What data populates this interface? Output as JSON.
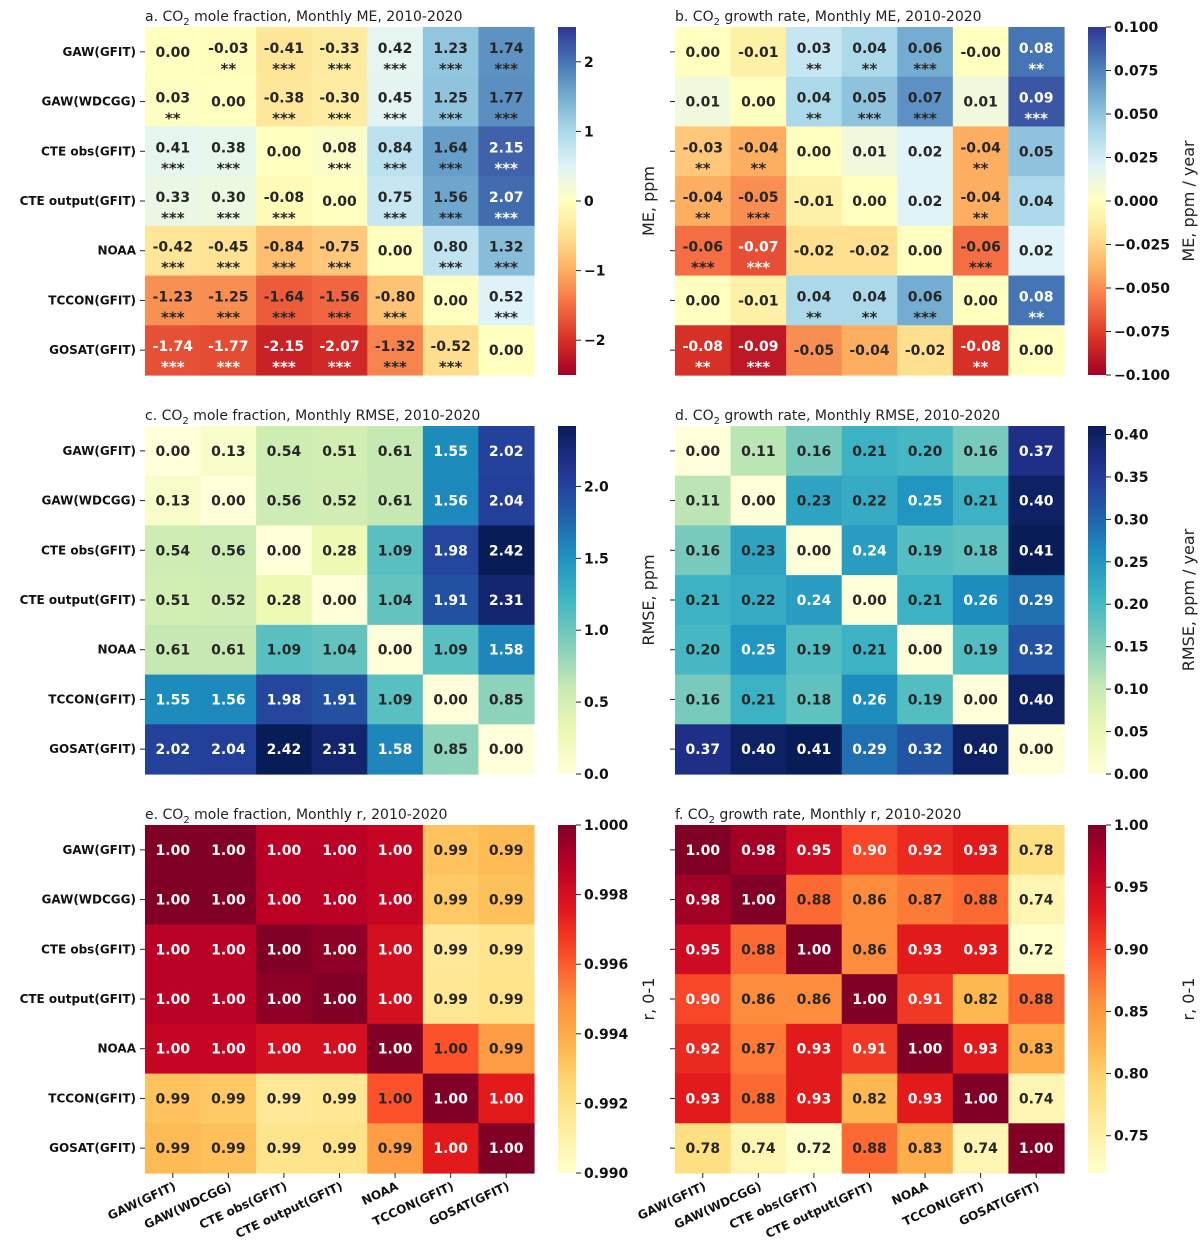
{
  "figure": {
    "row_labels": [
      "GAW(GFIT)",
      "GAW(WDCGG)",
      "CTE obs(GFIT)",
      "CTE output(GFIT)",
      "NOAA",
      "TCCON(GFIT)",
      "GOSAT(GFIT)"
    ]
  },
  "chart_data": [
    {
      "id": "a",
      "type": "heatmap",
      "title": "a. CO₂ mole fraction, Monthly ME, 2010-2020",
      "rows": [
        "GAW(GFIT)",
        "GAW(WDCGG)",
        "CTE obs(GFIT)",
        "CTE output(GFIT)",
        "NOAA",
        "TCCON(GFIT)",
        "GOSAT(GFIT)"
      ],
      "cols": [
        "GAW(GFIT)",
        "GAW(WDCGG)",
        "CTE obs(GFIT)",
        "CTE output(GFIT)",
        "NOAA",
        "TCCON(GFIT)",
        "GOSAT(GFIT)"
      ],
      "labels": [
        [
          "0.00",
          "-0.03",
          "-0.41",
          "-0.33",
          "0.42",
          "1.23",
          "1.74"
        ],
        [
          "0.03",
          "0.00",
          "-0.38",
          "-0.30",
          "0.45",
          "1.25",
          "1.77"
        ],
        [
          "0.41",
          "0.38",
          "0.00",
          "0.08",
          "0.84",
          "1.64",
          "2.15"
        ],
        [
          "0.33",
          "0.30",
          "-0.08",
          "0.00",
          "0.75",
          "1.56",
          "2.07"
        ],
        [
          "-0.42",
          "-0.45",
          "-0.84",
          "-0.75",
          "0.00",
          "0.80",
          "1.32"
        ],
        [
          "-1.23",
          "-1.25",
          "-1.64",
          "-1.56",
          "-0.80",
          "0.00",
          "0.52"
        ],
        [
          "-1.74",
          "-1.77",
          "-2.15",
          "-2.07",
          "-1.32",
          "-0.52",
          "0.00"
        ]
      ],
      "significance": [
        [
          "",
          "**",
          "***",
          "***",
          "***",
          "***",
          "***"
        ],
        [
          "**",
          "",
          "***",
          "***",
          "***",
          "***",
          "***"
        ],
        [
          "***",
          "***",
          "",
          "***",
          "***",
          "***",
          "***"
        ],
        [
          "***",
          "***",
          "***",
          "",
          "***",
          "***",
          "***"
        ],
        [
          "***",
          "***",
          "***",
          "***",
          "",
          "***",
          "***"
        ],
        [
          "***",
          "***",
          "***",
          "***",
          "***",
          "",
          "***"
        ],
        [
          "***",
          "***",
          "***",
          "***",
          "***",
          "***",
          ""
        ]
      ],
      "colormap": "RdYlBu",
      "vmin": -2.5,
      "vmax": 2.5,
      "colorbar_label": "ME, ppm",
      "colorbar_ticks": [
        -2,
        -1,
        0,
        1,
        2
      ],
      "colorbar_tick_labels": [
        "−2",
        "−1",
        "0",
        "1",
        "2"
      ]
    },
    {
      "id": "b",
      "type": "heatmap",
      "title": "b. CO₂ growth rate, Monthly ME, 2010-2020",
      "rows": [
        "GAW(GFIT)",
        "GAW(WDCGG)",
        "CTE obs(GFIT)",
        "CTE output(GFIT)",
        "NOAA",
        "TCCON(GFIT)",
        "GOSAT(GFIT)"
      ],
      "cols": [
        "GAW(GFIT)",
        "GAW(WDCGG)",
        "CTE obs(GFIT)",
        "CTE output(GFIT)",
        "NOAA",
        "TCCON(GFIT)",
        "GOSAT(GFIT)"
      ],
      "labels": [
        [
          "0.00",
          "-0.01",
          "0.03",
          "0.04",
          "0.06",
          "-0.00",
          "0.08"
        ],
        [
          "0.01",
          "0.00",
          "0.04",
          "0.05",
          "0.07",
          "0.01",
          "0.09"
        ],
        [
          "-0.03",
          "-0.04",
          "0.00",
          "0.01",
          "0.02",
          "-0.04",
          "0.05"
        ],
        [
          "-0.04",
          "-0.05",
          "-0.01",
          "0.00",
          "0.02",
          "-0.04",
          "0.04"
        ],
        [
          "-0.06",
          "-0.07",
          "-0.02",
          "-0.02",
          "0.00",
          "-0.06",
          "0.02"
        ],
        [
          "0.00",
          "-0.01",
          "0.04",
          "0.04",
          "0.06",
          "0.00",
          "0.08"
        ],
        [
          "-0.08",
          "-0.09",
          "-0.05",
          "-0.04",
          "-0.02",
          "-0.08",
          "0.00"
        ]
      ],
      "significance": [
        [
          "",
          "",
          "**",
          "**",
          "***",
          "",
          "**"
        ],
        [
          "",
          "",
          "**",
          "***",
          "***",
          "",
          "***"
        ],
        [
          "**",
          "**",
          "",
          "",
          "",
          "**",
          ""
        ],
        [
          "**",
          "***",
          "",
          "",
          "",
          "**",
          ""
        ],
        [
          "***",
          "***",
          "",
          "",
          "",
          "***",
          ""
        ],
        [
          "",
          "",
          "**",
          "**",
          "***",
          "",
          "**"
        ],
        [
          "**",
          "***",
          "",
          "",
          "",
          "**",
          ""
        ]
      ],
      "colormap": "RdYlBu",
      "vmin": -0.1,
      "vmax": 0.1,
      "colorbar_label": "ME, ppm / year",
      "colorbar_ticks": [
        -0.1,
        -0.075,
        -0.05,
        -0.025,
        0,
        0.025,
        0.05,
        0.075,
        0.1
      ],
      "colorbar_tick_labels": [
        "−0.100",
        "−0.075",
        "−0.050",
        "−0.025",
        "0.000",
        "0.025",
        "0.050",
        "0.075",
        "0.100"
      ]
    },
    {
      "id": "c",
      "type": "heatmap",
      "title": "c. CO₂ mole fraction, Monthly RMSE, 2010-2020",
      "rows": [
        "GAW(GFIT)",
        "GAW(WDCGG)",
        "CTE obs(GFIT)",
        "CTE output(GFIT)",
        "NOAA",
        "TCCON(GFIT)",
        "GOSAT(GFIT)"
      ],
      "cols": [
        "GAW(GFIT)",
        "GAW(WDCGG)",
        "CTE obs(GFIT)",
        "CTE output(GFIT)",
        "NOAA",
        "TCCON(GFIT)",
        "GOSAT(GFIT)"
      ],
      "labels": [
        [
          "0.00",
          "0.13",
          "0.54",
          "0.51",
          "0.61",
          "1.55",
          "2.02"
        ],
        [
          "0.13",
          "0.00",
          "0.56",
          "0.52",
          "0.61",
          "1.56",
          "2.04"
        ],
        [
          "0.54",
          "0.56",
          "0.00",
          "0.28",
          "1.09",
          "1.98",
          "2.42"
        ],
        [
          "0.51",
          "0.52",
          "0.28",
          "0.00",
          "1.04",
          "1.91",
          "2.31"
        ],
        [
          "0.61",
          "0.61",
          "1.09",
          "1.04",
          "0.00",
          "1.09",
          "1.58"
        ],
        [
          "1.55",
          "1.56",
          "1.98",
          "1.91",
          "1.09",
          "0.00",
          "0.85"
        ],
        [
          "2.02",
          "2.04",
          "2.42",
          "2.31",
          "1.58",
          "0.85",
          "0.00"
        ]
      ],
      "colormap": "YlGnBu",
      "vmin": 0,
      "vmax": 2.42,
      "colorbar_label": "RMSE, ppm",
      "colorbar_ticks": [
        0,
        0.5,
        1,
        1.5,
        2
      ],
      "colorbar_tick_labels": [
        "0.0",
        "0.5",
        "1.0",
        "1.5",
        "2.0"
      ]
    },
    {
      "id": "d",
      "type": "heatmap",
      "title": "d. CO₂ growth rate, Monthly RMSE, 2010-2020",
      "rows": [
        "GAW(GFIT)",
        "GAW(WDCGG)",
        "CTE obs(GFIT)",
        "CTE output(GFIT)",
        "NOAA",
        "TCCON(GFIT)",
        "GOSAT(GFIT)"
      ],
      "cols": [
        "GAW(GFIT)",
        "GAW(WDCGG)",
        "CTE obs(GFIT)",
        "CTE output(GFIT)",
        "NOAA",
        "TCCON(GFIT)",
        "GOSAT(GFIT)"
      ],
      "labels": [
        [
          "0.00",
          "0.11",
          "0.16",
          "0.21",
          "0.20",
          "0.16",
          "0.37"
        ],
        [
          "0.11",
          "0.00",
          "0.23",
          "0.22",
          "0.25",
          "0.21",
          "0.40"
        ],
        [
          "0.16",
          "0.23",
          "0.00",
          "0.24",
          "0.19",
          "0.18",
          "0.41"
        ],
        [
          "0.21",
          "0.22",
          "0.24",
          "0.00",
          "0.21",
          "0.26",
          "0.29"
        ],
        [
          "0.20",
          "0.25",
          "0.19",
          "0.21",
          "0.00",
          "0.19",
          "0.32"
        ],
        [
          "0.16",
          "0.21",
          "0.18",
          "0.26",
          "0.19",
          "0.00",
          "0.40"
        ],
        [
          "0.37",
          "0.40",
          "0.41",
          "0.29",
          "0.32",
          "0.40",
          "0.00"
        ]
      ],
      "colormap": "YlGnBu",
      "vmin": 0,
      "vmax": 0.41,
      "colorbar_label": "RMSE, ppm / year",
      "colorbar_ticks": [
        0,
        0.05,
        0.1,
        0.15,
        0.2,
        0.25,
        0.3,
        0.35,
        0.4
      ],
      "colorbar_tick_labels": [
        "0.00",
        "0.05",
        "0.10",
        "0.15",
        "0.20",
        "0.25",
        "0.30",
        "0.35",
        "0.40"
      ]
    },
    {
      "id": "e",
      "type": "heatmap",
      "title": "e. CO₂ mole fraction, Monthly r, 2010-2020",
      "rows": [
        "GAW(GFIT)",
        "GAW(WDCGG)",
        "CTE obs(GFIT)",
        "CTE output(GFIT)",
        "NOAA",
        "TCCON(GFIT)",
        "GOSAT(GFIT)"
      ],
      "cols": [
        "GAW(GFIT)",
        "GAW(WDCGG)",
        "CTE obs(GFIT)",
        "CTE output(GFIT)",
        "NOAA",
        "TCCON(GFIT)",
        "GOSAT(GFIT)"
      ],
      "labels": [
        [
          "1.00",
          "1.00",
          "1.00",
          "1.00",
          "1.00",
          "0.99",
          "0.99"
        ],
        [
          "1.00",
          "1.00",
          "1.00",
          "1.00",
          "1.00",
          "0.99",
          "0.99"
        ],
        [
          "1.00",
          "1.00",
          "1.00",
          "1.00",
          "1.00",
          "0.99",
          "0.99"
        ],
        [
          "1.00",
          "1.00",
          "1.00",
          "1.00",
          "1.00",
          "0.99",
          "0.99"
        ],
        [
          "1.00",
          "1.00",
          "1.00",
          "1.00",
          "1.00",
          "1.00",
          "0.99"
        ],
        [
          "0.99",
          "0.99",
          "0.99",
          "0.99",
          "1.00",
          "1.00",
          "1.00"
        ],
        [
          "0.99",
          "0.99",
          "0.99",
          "0.99",
          "0.99",
          "1.00",
          "1.00"
        ]
      ],
      "values": [
        [
          1.0,
          1.0,
          0.9988,
          0.9988,
          0.9985,
          0.9932,
          0.9935
        ],
        [
          1.0,
          1.0,
          0.9988,
          0.9988,
          0.9985,
          0.993,
          0.9933
        ],
        [
          0.9988,
          0.9988,
          1.0,
          0.9997,
          0.998,
          0.9915,
          0.9918
        ],
        [
          0.9988,
          0.9988,
          0.9997,
          1.0,
          0.998,
          0.9916,
          0.9919
        ],
        [
          0.9985,
          0.9985,
          0.998,
          0.998,
          1.0,
          0.9962,
          0.9945
        ],
        [
          0.9932,
          0.993,
          0.9915,
          0.9916,
          0.9962,
          1.0,
          0.9975
        ],
        [
          0.9935,
          0.9933,
          0.9918,
          0.9919,
          0.9945,
          0.9975,
          1.0
        ]
      ],
      "colormap": "YlOrRd",
      "vmin": 0.99,
      "vmax": 1.0,
      "colorbar_label": "r, 0-1",
      "colorbar_ticks": [
        0.99,
        0.992,
        0.994,
        0.996,
        0.998,
        1.0
      ],
      "colorbar_tick_labels": [
        "0.990",
        "0.992",
        "0.994",
        "0.996",
        "0.998",
        "1.000"
      ]
    },
    {
      "id": "f",
      "type": "heatmap",
      "title": "f. CO₂ growth rate, Monthly r, 2010-2020",
      "rows": [
        "GAW(GFIT)",
        "GAW(WDCGG)",
        "CTE obs(GFIT)",
        "CTE output(GFIT)",
        "NOAA",
        "TCCON(GFIT)",
        "GOSAT(GFIT)"
      ],
      "cols": [
        "GAW(GFIT)",
        "GAW(WDCGG)",
        "CTE obs(GFIT)",
        "CTE output(GFIT)",
        "NOAA",
        "TCCON(GFIT)",
        "GOSAT(GFIT)"
      ],
      "labels": [
        [
          "1.00",
          "0.98",
          "0.95",
          "0.90",
          "0.92",
          "0.93",
          "0.78"
        ],
        [
          "0.98",
          "1.00",
          "0.88",
          "0.86",
          "0.87",
          "0.88",
          "0.74"
        ],
        [
          "0.95",
          "0.88",
          "1.00",
          "0.86",
          "0.93",
          "0.93",
          "0.72"
        ],
        [
          "0.90",
          "0.86",
          "0.86",
          "1.00",
          "0.91",
          "0.82",
          "0.88"
        ],
        [
          "0.92",
          "0.87",
          "0.93",
          "0.91",
          "1.00",
          "0.93",
          "0.83"
        ],
        [
          "0.93",
          "0.88",
          "0.93",
          "0.82",
          "0.93",
          "1.00",
          "0.74"
        ],
        [
          "0.78",
          "0.74",
          "0.72",
          "0.88",
          "0.83",
          "0.74",
          "1.00"
        ]
      ],
      "colormap": "YlOrRd",
      "vmin": 0.72,
      "vmax": 1.0,
      "colorbar_label": "r, 0-1",
      "colorbar_ticks": [
        0.75,
        0.8,
        0.85,
        0.9,
        0.95,
        1.0
      ],
      "colorbar_tick_labels": [
        "0.75",
        "0.80",
        "0.85",
        "0.90",
        "0.95",
        "1.00"
      ]
    }
  ]
}
